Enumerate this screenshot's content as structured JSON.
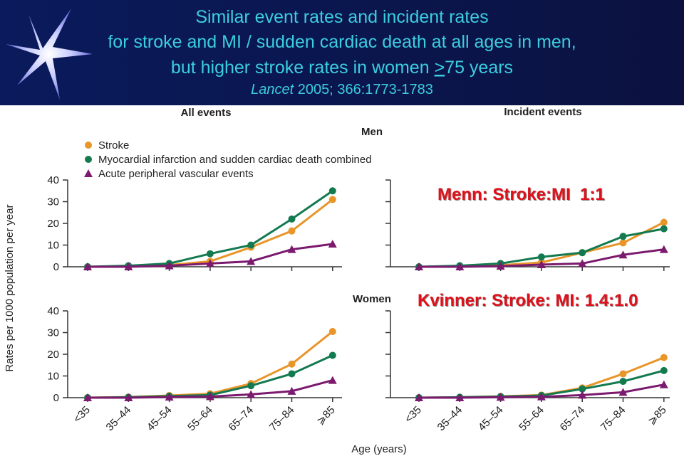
{
  "slide": {
    "title": [
      "Similar event rates and incident rates",
      "for stroke and MI / sudden cardiac death at all ages in men,",
      "but higher stroke rates in women ",
      ">",
      "75 years"
    ],
    "reference": [
      "Lancet",
      " 2005; 366:1773-1783"
    ]
  },
  "chart_data": {
    "type": "line",
    "column_titles": [
      "All events",
      "Incident events"
    ],
    "row_titles": [
      "Men",
      "Women"
    ],
    "y_label": "Rates per 1000 population per year",
    "x_label": "Age (years)",
    "categories": [
      "<35",
      "35–44",
      "45–54",
      "55–64",
      "65–74",
      "75–84",
      "⩾85"
    ],
    "ylim": [
      0,
      40
    ],
    "yticks": [
      0,
      10,
      20,
      30,
      40
    ],
    "series": [
      {
        "name": "Stroke",
        "color": "#e8952a",
        "marker": "circle"
      },
      {
        "name": "Myocardial infarction and sudden cardiac death combined",
        "color": "#137a50",
        "marker": "circle"
      },
      {
        "name": "Acute peripheral vascular events",
        "color": "#7b1a6e",
        "marker": "triangle"
      }
    ],
    "panels": [
      {
        "values": [
          [
            0,
            0.3,
            0.8,
            2.5,
            9,
            16.5,
            31
          ],
          [
            0,
            0.5,
            1.5,
            6,
            10,
            22,
            35
          ],
          [
            0,
            0,
            0.5,
            1.5,
            2.5,
            8,
            10.5
          ]
        ]
      },
      {
        "values": [
          [
            0,
            0.2,
            0.7,
            2,
            6.5,
            11,
            20.5
          ],
          [
            0,
            0.5,
            1.5,
            4.5,
            6.5,
            14,
            17.5
          ],
          [
            0,
            0,
            0.3,
            1,
            1.5,
            5.5,
            8
          ]
        ]
      },
      {
        "values": [
          [
            0,
            0.3,
            1,
            1.8,
            6.5,
            15.5,
            30.5
          ],
          [
            0,
            0.2,
            0.7,
            1.2,
            5.5,
            11,
            19.5
          ],
          [
            0,
            0,
            0.3,
            0.5,
            1.5,
            3,
            8
          ]
        ]
      },
      {
        "values": [
          [
            0,
            0.2,
            0.6,
            1.2,
            4.5,
            11,
            18.5
          ],
          [
            0,
            0.2,
            0.5,
            1,
            4,
            7.5,
            12.5
          ],
          [
            0,
            0,
            0.2,
            0.4,
            1.2,
            2.5,
            6
          ]
        ]
      }
    ],
    "annotations": [
      "Menn: Stroke:MI  1:1",
      "Kvinner: Stroke: MI: 1.4:1.0"
    ]
  }
}
